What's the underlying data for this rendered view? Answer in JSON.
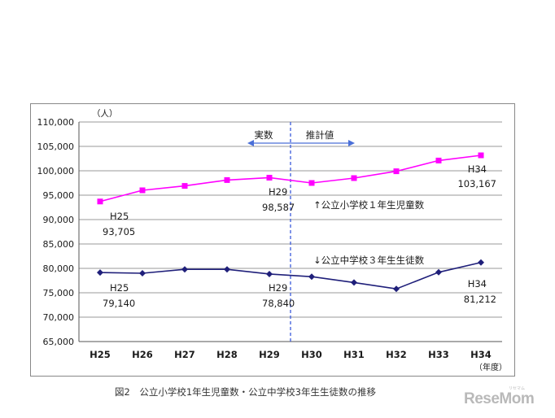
{
  "chart_data": {
    "type": "line",
    "categories": [
      "H25",
      "H26",
      "H27",
      "H28",
      "H29",
      "H30",
      "H31",
      "H32",
      "H33",
      "H34"
    ],
    "series": [
      {
        "values": [
          93705,
          96000,
          96900,
          98100,
          98587,
          97500,
          98500,
          99900,
          102100,
          103167
        ],
        "color": "#ff00ff",
        "marker": "square"
      },
      {
        "values": [
          79140,
          79000,
          79800,
          79800,
          78840,
          78300,
          77100,
          75800,
          79200,
          81212
        ],
        "color": "#1f1f7a",
        "marker": "diamond"
      }
    ],
    "ylim": [
      65000,
      110000
    ],
    "y_ticks": [
      "65,000",
      "70,000",
      "75,000",
      "80,000",
      "85,000",
      "90,000",
      "95,000",
      "100,000",
      "105,000",
      "110,000"
    ],
    "y_unit": "（人）",
    "x_unit": "（年度）",
    "grid": true,
    "divider_after": "H29",
    "annotations": {
      "actual": "実数",
      "estimate": "推計値",
      "series1_label": "↑公立小学校１年生児童数",
      "series2_label": "↓公立中学校３年生生徒数",
      "p1_first_label": "H25",
      "p1_first_value": "93,705",
      "p1_mid_label": "H29",
      "p1_mid_value": "98,587",
      "p1_last_label": "H34",
      "p1_last_value": "103,167",
      "p2_first_label": "H25",
      "p2_first_value": "79,140",
      "p2_mid_label": "H29",
      "p2_mid_value": "78,840",
      "p2_last_label": "H34",
      "p2_last_value": "81,212"
    }
  },
  "caption": "図2　公立小学校1年生児童数・公立中学校3年生生徒数の推移",
  "logo": "ReseMom",
  "logo_sub": "リセマム"
}
